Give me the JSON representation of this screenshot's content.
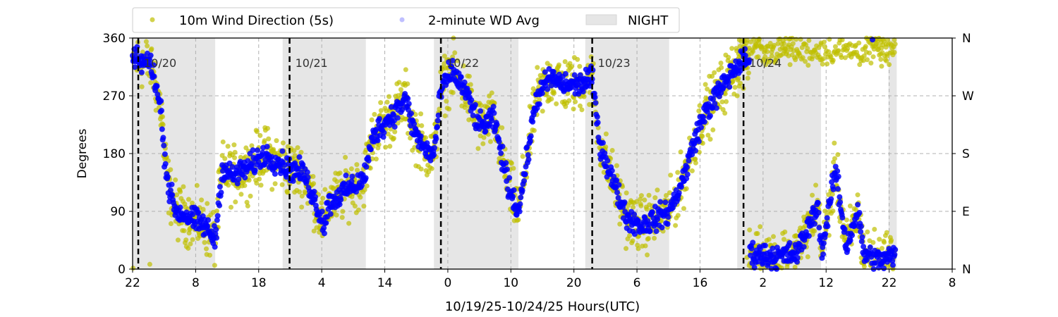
{
  "chart_data": {
    "type": "scatter",
    "xlabel": "10/19/25-10/24/25  Hours(UTC)",
    "ylabel": "Degrees",
    "xlim_hours_from_start": [
      0,
      130
    ],
    "ylim": [
      0,
      360
    ],
    "x_tick_labels": [
      "22",
      "8",
      "18",
      "4",
      "14",
      "0",
      "10",
      "20",
      "6",
      "16",
      "2",
      "12",
      "22",
      "8"
    ],
    "x_tick_hours": [
      0,
      10,
      20,
      30,
      40,
      50,
      60,
      70,
      80,
      90,
      100,
      110,
      120,
      130
    ],
    "y_ticks": [
      0,
      90,
      180,
      270,
      360
    ],
    "y_tick_labels": [
      "0",
      "90",
      "180",
      "270",
      "360"
    ],
    "right_axis_labels": [
      "N",
      "E",
      "S",
      "W",
      "N"
    ],
    "grid": true,
    "legend": {
      "placement": "top",
      "entries": [
        {
          "label": "10m Wind Direction (5s)",
          "color": "#bfbf00"
        },
        {
          "label": "2-minute WD Avg",
          "color": "#0000ff"
        },
        {
          "label": "NIGHT",
          "color": "#e6e6e6"
        }
      ]
    },
    "day_markers": [
      {
        "label": "10/20",
        "hour": 0.9
      },
      {
        "label": "10/21",
        "hour": 24.9
      },
      {
        "label": "10/22",
        "hour": 48.9
      },
      {
        "label": "10/23",
        "hour": 72.9
      },
      {
        "label": "10/24",
        "hour": 96.9
      }
    ],
    "night_periods_hours": [
      [
        0,
        13.1
      ],
      [
        23.8,
        37.0
      ],
      [
        47.8,
        61.2
      ],
      [
        71.8,
        85.1
      ],
      [
        95.9,
        109.2
      ],
      [
        119.9,
        121.2
      ]
    ],
    "series": [
      {
        "name": "2-minute WD Avg",
        "color": "#0000ff",
        "trend_hours": [
          0,
          3,
          4.1,
          4.7,
          4.9,
          5.8,
          6.9,
          9.2,
          11.4,
          13.1,
          14.2,
          15.9,
          18,
          20.9,
          23.2,
          24.9,
          27.1,
          28.7,
          30.4,
          31,
          33.8,
          36.6,
          38.3,
          41.6,
          43.3,
          44.4,
          46.1,
          47.8,
          48.9,
          50.6,
          52.8,
          55,
          57.3,
          59.5,
          61.2,
          62.3,
          64,
          66.2,
          68.5,
          70.7,
          72.9,
          74,
          76.3,
          78.5,
          80.8,
          83,
          85.2,
          87.5,
          89.1,
          90.8,
          93.1,
          95.3,
          97,
          98.7,
          102,
          105.4,
          108.7,
          109.3,
          111.5,
          113.2,
          115,
          116,
          118.3,
          120.1,
          121
        ],
        "trend_degrees": [
          326,
          320,
          265,
          238,
          189,
          123,
          90,
          79,
          68,
          46,
          156,
          145,
          156,
          178,
          167,
          156,
          150,
          112,
          68,
          101,
          123,
          139,
          211,
          244,
          265,
          222,
          189,
          178,
          277,
          310,
          277,
          222,
          233,
          134,
          90,
          156,
          265,
          298,
          287,
          287,
          298,
          200,
          134,
          79,
          68,
          79,
          90,
          145,
          200,
          244,
          277,
          310,
          326,
          24,
          19,
          24,
          101,
          24,
          156,
          35,
          90,
          24,
          13,
          19,
          19
        ],
        "spread_degrees": 15
      },
      {
        "name": "10m Wind Direction (5s)",
        "color": "#bfbf00",
        "follows": "2-minute WD Avg",
        "spread_degrees": 35,
        "secondary_band": {
          "hours": [
            96,
            121
          ],
          "degrees": 340
        }
      }
    ]
  }
}
